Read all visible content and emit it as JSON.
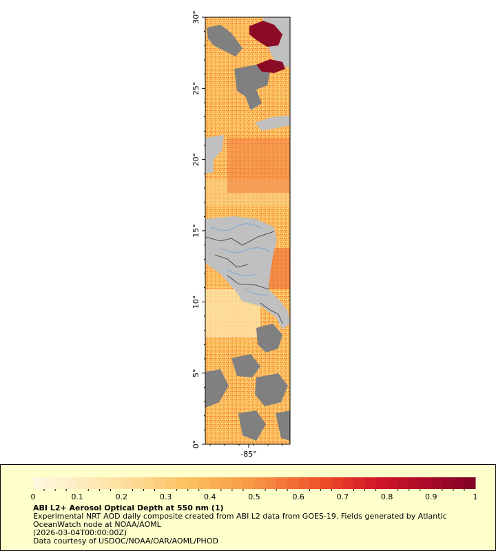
{
  "map": {
    "lat_range": [
      0,
      30
    ],
    "lon_center": -85,
    "lat_ticks": [
      {
        "value": 0,
        "label": "0°"
      },
      {
        "value": 5,
        "label": "5°"
      },
      {
        "value": 10,
        "label": "10°"
      },
      {
        "value": 15,
        "label": "15°"
      },
      {
        "value": 20,
        "label": "20°"
      },
      {
        "value": 25,
        "label": "25°"
      },
      {
        "value": 30,
        "label": "30°"
      }
    ],
    "lon_ticks": [
      {
        "value": -85,
        "label": "-85°"
      }
    ],
    "colors": {
      "land": "#c0c0c0",
      "no_data": "#808080",
      "low": "#fde9b8",
      "mid": "#fcc060",
      "high": "#e03a1e",
      "max": "#8b0a26",
      "rivers": "#7aa6d6",
      "borders": "#333333"
    }
  },
  "legend": {
    "min": 0,
    "max": 1,
    "tick_labels": [
      "0",
      "0.1",
      "0.2",
      "0.3",
      "0.4",
      "0.5",
      "0.6",
      "0.7",
      "0.8",
      "0.9",
      "1"
    ],
    "title": "ABI L2+ Aerosol Optical Depth at 550 nm (1)",
    "description": "Experimental NRT AOD daily composite created from ABI L2 data from GOES-19. Fields generated by Atlantic OceanWatch node at NOAA/AOML",
    "date": "(2026-03-04T00:00:00Z)",
    "credit": "Data courtesy of USDOC/NOAA/OAR/AOML/PHOD"
  }
}
